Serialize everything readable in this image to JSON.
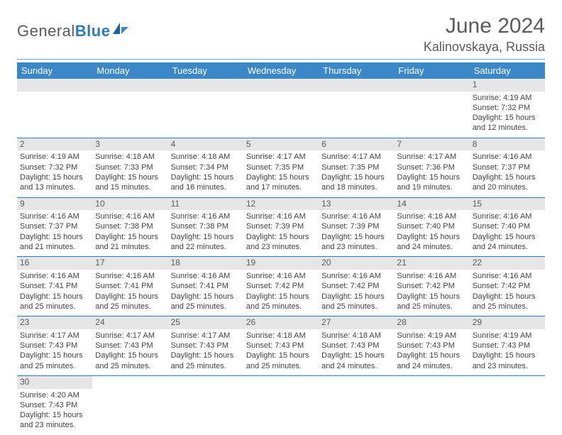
{
  "logo": {
    "text1": "General",
    "text2": "Blue"
  },
  "title": "June 2024",
  "location": "Kalinovskaya, Russia",
  "colors": {
    "header_bg": "#3a88c7",
    "daynum_bg": "#e6e6e6",
    "rule": "#2e7bbf",
    "text": "#5b5b5b"
  },
  "weekdays": [
    "Sunday",
    "Monday",
    "Tuesday",
    "Wednesday",
    "Thursday",
    "Friday",
    "Saturday"
  ],
  "weeks": [
    [
      null,
      null,
      null,
      null,
      null,
      null,
      {
        "d": "1",
        "sr": "4:19 AM",
        "ss": "7:32 PM",
        "dl": "15 hours and 12 minutes."
      }
    ],
    [
      {
        "d": "2",
        "sr": "4:19 AM",
        "ss": "7:32 PM",
        "dl": "15 hours and 13 minutes."
      },
      {
        "d": "3",
        "sr": "4:18 AM",
        "ss": "7:33 PM",
        "dl": "15 hours and 15 minutes."
      },
      {
        "d": "4",
        "sr": "4:18 AM",
        "ss": "7:34 PM",
        "dl": "15 hours and 16 minutes."
      },
      {
        "d": "5",
        "sr": "4:17 AM",
        "ss": "7:35 PM",
        "dl": "15 hours and 17 minutes."
      },
      {
        "d": "6",
        "sr": "4:17 AM",
        "ss": "7:35 PM",
        "dl": "15 hours and 18 minutes."
      },
      {
        "d": "7",
        "sr": "4:17 AM",
        "ss": "7:36 PM",
        "dl": "15 hours and 19 minutes."
      },
      {
        "d": "8",
        "sr": "4:16 AM",
        "ss": "7:37 PM",
        "dl": "15 hours and 20 minutes."
      }
    ],
    [
      {
        "d": "9",
        "sr": "4:16 AM",
        "ss": "7:37 PM",
        "dl": "15 hours and 21 minutes."
      },
      {
        "d": "10",
        "sr": "4:16 AM",
        "ss": "7:38 PM",
        "dl": "15 hours and 21 minutes."
      },
      {
        "d": "11",
        "sr": "4:16 AM",
        "ss": "7:38 PM",
        "dl": "15 hours and 22 minutes."
      },
      {
        "d": "12",
        "sr": "4:16 AM",
        "ss": "7:39 PM",
        "dl": "15 hours and 23 minutes."
      },
      {
        "d": "13",
        "sr": "4:16 AM",
        "ss": "7:39 PM",
        "dl": "15 hours and 23 minutes."
      },
      {
        "d": "14",
        "sr": "4:16 AM",
        "ss": "7:40 PM",
        "dl": "15 hours and 24 minutes."
      },
      {
        "d": "15",
        "sr": "4:16 AM",
        "ss": "7:40 PM",
        "dl": "15 hours and 24 minutes."
      }
    ],
    [
      {
        "d": "16",
        "sr": "4:16 AM",
        "ss": "7:41 PM",
        "dl": "15 hours and 25 minutes."
      },
      {
        "d": "17",
        "sr": "4:16 AM",
        "ss": "7:41 PM",
        "dl": "15 hours and 25 minutes."
      },
      {
        "d": "18",
        "sr": "4:16 AM",
        "ss": "7:41 PM",
        "dl": "15 hours and 25 minutes."
      },
      {
        "d": "19",
        "sr": "4:16 AM",
        "ss": "7:42 PM",
        "dl": "15 hours and 25 minutes."
      },
      {
        "d": "20",
        "sr": "4:16 AM",
        "ss": "7:42 PM",
        "dl": "15 hours and 25 minutes."
      },
      {
        "d": "21",
        "sr": "4:16 AM",
        "ss": "7:42 PM",
        "dl": "15 hours and 25 minutes."
      },
      {
        "d": "22",
        "sr": "4:16 AM",
        "ss": "7:42 PM",
        "dl": "15 hours and 25 minutes."
      }
    ],
    [
      {
        "d": "23",
        "sr": "4:17 AM",
        "ss": "7:43 PM",
        "dl": "15 hours and 25 minutes."
      },
      {
        "d": "24",
        "sr": "4:17 AM",
        "ss": "7:43 PM",
        "dl": "15 hours and 25 minutes."
      },
      {
        "d": "25",
        "sr": "4:17 AM",
        "ss": "7:43 PM",
        "dl": "15 hours and 25 minutes."
      },
      {
        "d": "26",
        "sr": "4:18 AM",
        "ss": "7:43 PM",
        "dl": "15 hours and 25 minutes."
      },
      {
        "d": "27",
        "sr": "4:18 AM",
        "ss": "7:43 PM",
        "dl": "15 hours and 24 minutes."
      },
      {
        "d": "28",
        "sr": "4:19 AM",
        "ss": "7:43 PM",
        "dl": "15 hours and 24 minutes."
      },
      {
        "d": "29",
        "sr": "4:19 AM",
        "ss": "7:43 PM",
        "dl": "15 hours and 23 minutes."
      }
    ],
    [
      {
        "d": "30",
        "sr": "4:20 AM",
        "ss": "7:43 PM",
        "dl": "15 hours and 23 minutes."
      },
      null,
      null,
      null,
      null,
      null,
      null
    ]
  ],
  "labels": {
    "sunrise": "Sunrise: ",
    "sunset": "Sunset: ",
    "daylight": "Daylight: "
  }
}
